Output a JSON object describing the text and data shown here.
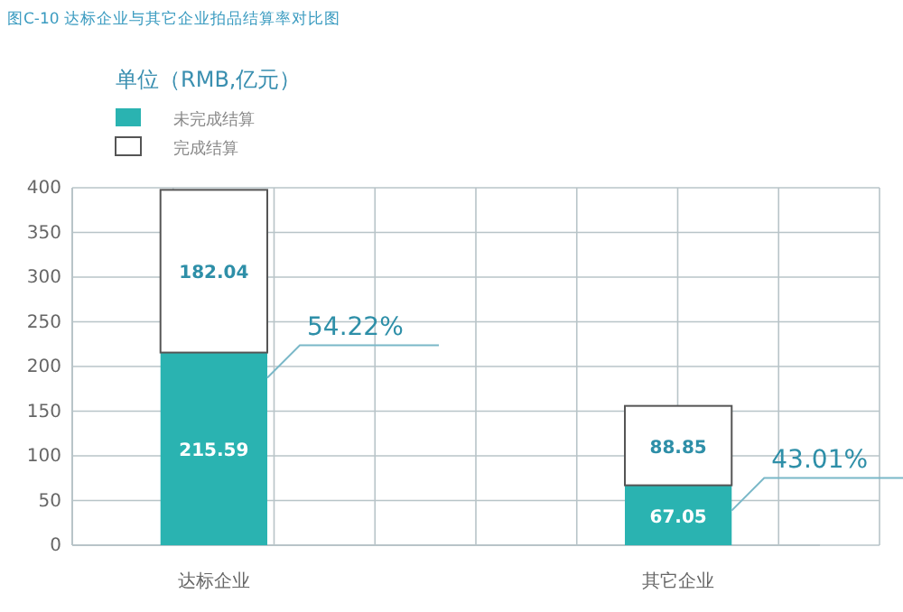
{
  "chart_data": {
    "type": "bar",
    "title": "图C-10 达标企业与其它企业拍品结算率对比图",
    "ylabel": "单位（RMB,亿元）",
    "categories": [
      "达标企业",
      "其它企业"
    ],
    "stacked": true,
    "series": [
      {
        "name": "未完成结算",
        "color": "#2ab3b1",
        "values": [
          215.59,
          67.05
        ]
      },
      {
        "name": "完成结算",
        "color": "#ffffff",
        "values": [
          182.04,
          88.85
        ]
      }
    ],
    "ylim": [
      0,
      400
    ],
    "yticks": [
      0,
      50,
      100,
      150,
      200,
      250,
      300,
      350,
      400
    ],
    "grid": true,
    "legend": "top left",
    "data_labels": true,
    "annotations": [
      "54.22%",
      "43.01%"
    ]
  }
}
